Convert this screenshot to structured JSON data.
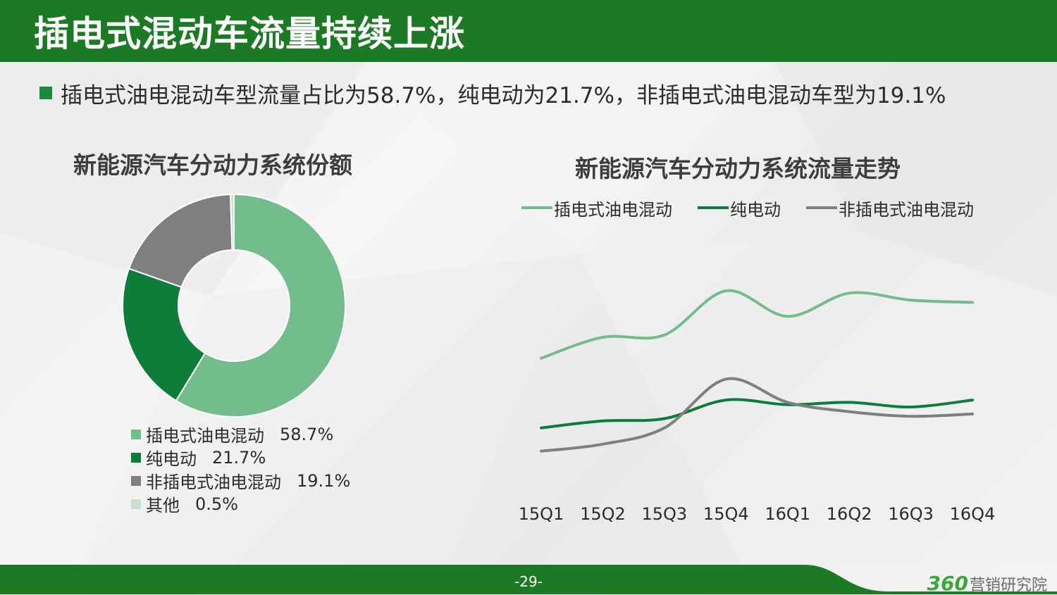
{
  "header": {
    "title": "插电式混动车流量持续上涨"
  },
  "summary": {
    "text": "插电式油电混动车型流量占比为58.7%，纯电动为21.7%，非插电式油电混动车型为19.1%"
  },
  "colors": {
    "header_green": "#1d7a24",
    "plugin_hybrid": "#73bd8c",
    "electric": "#0f7d3a",
    "non_plugin_hybrid": "#7f7f7f",
    "other": "#c5e3cc"
  },
  "chart_data": [
    {
      "type": "pie",
      "title": "新能源汽车分动力系统份额",
      "donut": true,
      "legend_position": "bottom",
      "slices": [
        {
          "label": "插电式油电混动",
          "value": 58.7,
          "display": "58.7%",
          "color": "#73bd8c"
        },
        {
          "label": "纯电动",
          "value": 21.7,
          "display": "21.7%",
          "color": "#0f7d3a"
        },
        {
          "label": "非插电式油电混动",
          "value": 19.1,
          "display": "19.1%",
          "color": "#7f7f7f"
        },
        {
          "label": "其他",
          "value": 0.5,
          "display": "0.5%",
          "color": "#c5e3cc"
        }
      ]
    },
    {
      "type": "line",
      "title": "新能源汽车分动力系统流量走势",
      "legend_position": "top",
      "smooth": true,
      "grid": false,
      "y_axis_shown": false,
      "ylim": [
        0,
        100
      ],
      "categories": [
        "15Q1",
        "15Q2",
        "15Q3",
        "15Q4",
        "16Q1",
        "16Q2",
        "16Q3",
        "16Q4"
      ],
      "series": [
        {
          "name": "插电式油电混动",
          "color": "#73bd8c",
          "values": [
            61,
            70,
            71,
            90,
            79,
            89,
            86,
            85
          ]
        },
        {
          "name": "纯电动",
          "color": "#0f7d3a",
          "values": [
            31,
            34,
            35,
            43,
            41,
            42,
            40,
            43
          ]
        },
        {
          "name": "非插电式油电混动",
          "color": "#7f7f7f",
          "values": [
            21,
            24,
            31,
            52,
            42,
            38,
            36,
            37
          ]
        }
      ]
    }
  ],
  "footer": {
    "page": "-29-",
    "brand_number": "360",
    "brand_text": "营销研究院"
  }
}
